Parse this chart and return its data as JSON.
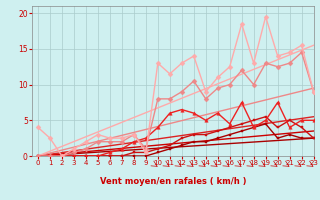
{
  "xlabel": "Vent moyen/en rafales ( km/h )",
  "background_color": "#cff0f0",
  "grid_color": "#aacccc",
  "xlim": [
    -0.5,
    23
  ],
  "ylim": [
    0,
    21
  ],
  "yticks": [
    0,
    5,
    10,
    15,
    20
  ],
  "xticks": [
    0,
    1,
    2,
    3,
    4,
    5,
    6,
    7,
    8,
    9,
    10,
    11,
    12,
    13,
    14,
    15,
    16,
    17,
    18,
    19,
    20,
    21,
    22,
    23
  ],
  "lines": [
    {
      "x": [
        0,
        23
      ],
      "y": [
        0,
        2.5
      ],
      "color": "#aa0000",
      "lw": 1.0,
      "marker": null
    },
    {
      "x": [
        0,
        23
      ],
      "y": [
        0,
        3.5
      ],
      "color": "#cc0000",
      "lw": 1.0,
      "marker": null
    },
    {
      "x": [
        0,
        23
      ],
      "y": [
        0,
        5.5
      ],
      "color": "#dd2222",
      "lw": 1.0,
      "marker": null
    },
    {
      "x": [
        0,
        23
      ],
      "y": [
        0,
        9.5
      ],
      "color": "#ee8888",
      "lw": 1.0,
      "marker": null
    },
    {
      "x": [
        0,
        23
      ],
      "y": [
        0,
        15.5
      ],
      "color": "#ffaaaa",
      "lw": 1.0,
      "marker": null
    },
    {
      "x": [
        0,
        1,
        2,
        3,
        4,
        5,
        6,
        7,
        8,
        9,
        10,
        11,
        12,
        13,
        14,
        15,
        16,
        17,
        18,
        19,
        20,
        21,
        22,
        23
      ],
      "y": [
        0,
        0,
        0,
        0,
        0,
        0,
        0,
        0,
        0,
        0,
        0.5,
        1,
        1.5,
        2,
        2,
        2.5,
        3,
        3.5,
        4,
        4.5,
        2.5,
        3,
        2.5,
        2.5
      ],
      "color": "#aa0000",
      "lw": 1.0,
      "marker": "s",
      "ms": 2.0
    },
    {
      "x": [
        0,
        1,
        2,
        3,
        4,
        5,
        6,
        7,
        8,
        9,
        10,
        11,
        12,
        13,
        14,
        15,
        16,
        17,
        18,
        19,
        20,
        21,
        22,
        23
      ],
      "y": [
        0,
        0,
        0,
        0,
        0,
        0,
        0,
        0,
        0.5,
        0.5,
        1,
        1.5,
        2.5,
        3,
        3,
        3.5,
        4,
        4.5,
        5,
        5.5,
        4,
        5,
        4,
        2.5
      ],
      "color": "#cc1111",
      "lw": 1.0,
      "marker": "s",
      "ms": 2.0
    },
    {
      "x": [
        0,
        1,
        2,
        3,
        4,
        5,
        6,
        7,
        8,
        9,
        10,
        11,
        12,
        13,
        14,
        15,
        16,
        17,
        18,
        19,
        20,
        21,
        22,
        23
      ],
      "y": [
        0,
        0,
        0,
        0,
        0,
        0,
        0.5,
        1,
        2,
        2.5,
        4,
        6,
        6.5,
        6,
        5,
        6,
        4.5,
        7.5,
        4,
        5,
        7.5,
        4,
        5,
        5
      ],
      "color": "#ee2222",
      "lw": 1.0,
      "marker": "^",
      "ms": 2.5
    },
    {
      "x": [
        0,
        1,
        2,
        3,
        4,
        5,
        6,
        7,
        8,
        9,
        10,
        11,
        12,
        13,
        14,
        15,
        16,
        17,
        18,
        19,
        20,
        21,
        22,
        23
      ],
      "y": [
        0,
        0,
        0,
        0.5,
        1,
        2,
        2,
        2,
        3,
        1,
        8,
        8,
        9,
        10.5,
        8,
        9.5,
        10,
        12,
        10,
        13,
        12.5,
        13,
        14.5,
        9
      ],
      "color": "#ee8888",
      "lw": 1.0,
      "marker": "D",
      "ms": 2.5
    },
    {
      "x": [
        0,
        1,
        2,
        3,
        4,
        5,
        6,
        7,
        8,
        9,
        10,
        11,
        12,
        13,
        14,
        15,
        16,
        17,
        18,
        19,
        20,
        21,
        22,
        23
      ],
      "y": [
        4,
        2.5,
        0,
        1,
        2,
        3,
        2.5,
        2.5,
        3,
        0.5,
        13,
        11.5,
        13,
        14,
        9,
        11,
        12.5,
        18.5,
        13,
        19.5,
        14,
        14.5,
        15.5,
        9
      ],
      "color": "#ffaaaa",
      "lw": 1.0,
      "marker": "D",
      "ms": 2.5
    }
  ]
}
